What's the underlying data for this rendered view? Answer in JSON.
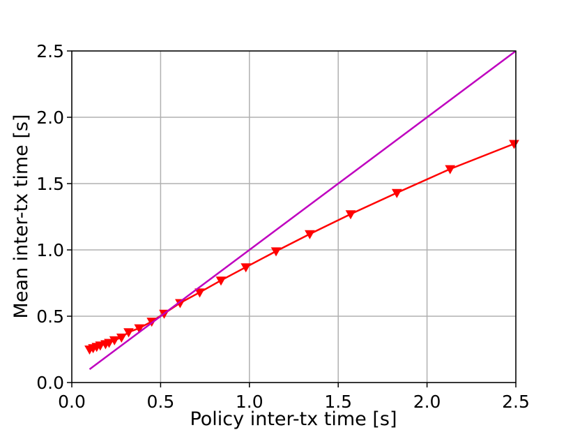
{
  "chart_data": {
    "type": "line",
    "xlabel": "Policy inter-tx time [s]",
    "ylabel": "Mean inter-tx time [s]",
    "xlim": [
      0.0,
      2.5
    ],
    "ylim": [
      0.0,
      2.5
    ],
    "grid": true,
    "x_ticks": [
      "0.0",
      "0.5",
      "1.0",
      "1.5",
      "2.0",
      "2.5"
    ],
    "y_ticks": [
      "0.0",
      "0.5",
      "1.0",
      "1.5",
      "2.0",
      "2.5"
    ],
    "series": [
      {
        "color": "#ff0000",
        "marker": "triangle-down",
        "x": [
          0.1,
          0.12,
          0.14,
          0.16,
          0.19,
          0.21,
          0.24,
          0.28,
          0.32,
          0.38,
          0.45,
          0.52,
          0.61,
          0.72,
          0.84,
          0.98,
          1.15,
          1.34,
          1.57,
          1.83,
          2.13,
          2.49
        ],
        "y": [
          0.25,
          0.26,
          0.27,
          0.28,
          0.29,
          0.3,
          0.32,
          0.34,
          0.38,
          0.41,
          0.46,
          0.52,
          0.6,
          0.68,
          0.77,
          0.87,
          0.99,
          1.12,
          1.27,
          1.43,
          1.61,
          1.8
        ]
      },
      {
        "color": "#bf00bf",
        "marker": "none",
        "x": [
          0.1,
          2.5
        ],
        "y": [
          0.1,
          2.5
        ]
      }
    ]
  }
}
